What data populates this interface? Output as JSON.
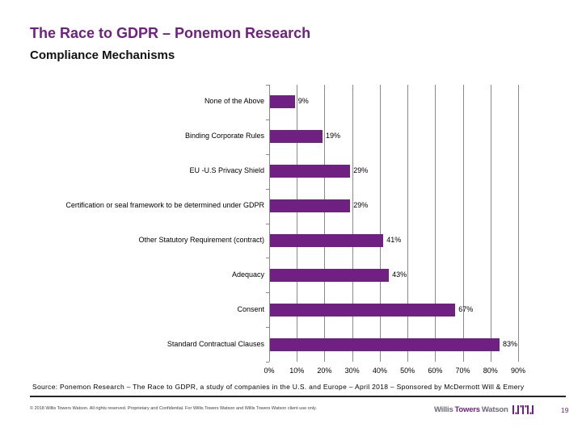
{
  "slide": {
    "title": "The Race to GDPR – Ponemon Research",
    "subtitle": "Compliance Mechanisms",
    "source_line": "Source: Ponemon Research – The Race to GDPR, a study of companies in the U.S. and  Europe – April 2018 – Sponsored by McDermott Will & Emery",
    "copyright": "© 2018 Willis Towers Watson. All rights reserved. Proprietary and Confidential. For Willis Towers Watson and Willis Towers Watson client use only.",
    "page_number": "19",
    "logo": {
      "word1": "Willis",
      "word2": "Towers",
      "word3": "Watson"
    }
  },
  "colors": {
    "brand_purple": "#702082",
    "grid_gray": "#8a8a8a",
    "text_black": "#000000"
  },
  "chart_data": {
    "type": "bar",
    "orientation": "horizontal",
    "title": "Compliance Mechanisms",
    "categories": [
      "None of the Above",
      "Binding Corporate Rules",
      "EU -U.S Privacy Shield",
      "Certification or seal framework to be determined under GDPR",
      "Other Statutory Requirement (contract)",
      "Adequacy",
      "Consent",
      "Standard Contractual Clauses"
    ],
    "values": [
      9,
      19,
      29,
      29,
      41,
      43,
      67,
      83
    ],
    "value_labels": [
      "9%",
      "19%",
      "29%",
      "29%",
      "41%",
      "43%",
      "67%",
      "83%"
    ],
    "x_ticks": [
      "0%",
      "10%",
      "20%",
      "30%",
      "40%",
      "50%",
      "60%",
      "70%",
      "80%",
      "90%"
    ],
    "xlim": [
      0,
      90
    ],
    "grid": true,
    "legend": false,
    "bar_color": "#702082"
  }
}
